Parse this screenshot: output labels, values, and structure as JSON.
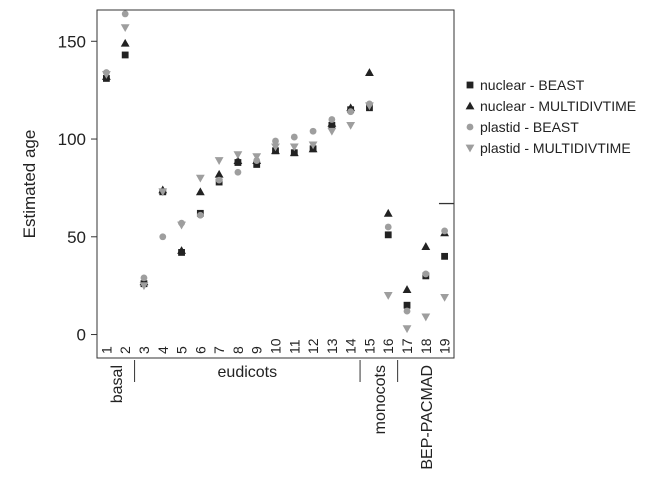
{
  "chart_data": {
    "type": "scatter",
    "ylabel": "Estimated age",
    "ylim": [
      -12,
      166
    ],
    "yticks": [
      0,
      50,
      100,
      150
    ],
    "xlim": [
      0.5,
      19.5
    ],
    "x_tick_labels": [
      "1",
      "2",
      "3",
      "4",
      "5",
      "6",
      "7",
      "8",
      "9",
      "10",
      "11",
      "12",
      "13",
      "14",
      "15",
      "16",
      "17",
      "18",
      "19"
    ],
    "groups": [
      {
        "label": "basal",
        "range": [
          1,
          2
        ]
      },
      {
        "label": "eudicots",
        "range": [
          3,
          14
        ]
      },
      {
        "label": "monocots",
        "range": [
          15,
          16
        ]
      },
      {
        "label": "BEP-PACMAD",
        "range": [
          17,
          19
        ]
      }
    ],
    "legend_position": "right",
    "series": [
      {
        "name": "nuclear - BEAST",
        "marker": "square",
        "color": "#222222",
        "values": [
          131,
          143,
          26,
          73,
          42,
          62,
          78,
          88,
          87,
          94,
          93,
          95,
          107,
          115,
          116,
          51,
          15,
          30,
          40
        ]
      },
      {
        "name": "nuclear - MULTIDIVTIME",
        "marker": "triangle-up",
        "color": "#222222",
        "values": [
          132,
          149,
          27,
          74,
          43,
          73,
          82,
          89,
          89,
          94,
          93,
          95,
          108,
          116,
          134,
          62,
          23,
          45,
          52
        ]
      },
      {
        "name": "plastid - BEAST",
        "marker": "circle",
        "color": "#9e9e9e",
        "values": [
          134,
          164,
          29,
          50,
          57,
          61,
          79,
          83,
          89,
          99,
          101,
          104,
          110,
          114,
          118,
          55,
          12,
          31,
          53
        ]
      },
      {
        "name": "plastid - MULTIDIVTIME",
        "marker": "triangle-down",
        "color": "#9e9e9e",
        "values": [
          133,
          157,
          25,
          73,
          56,
          80,
          89,
          92,
          91,
          96,
          96,
          97,
          104,
          107,
          117,
          20,
          3,
          9,
          19
        ]
      }
    ],
    "annotations": [
      {
        "type": "horizontal-line",
        "x_range": [
          18.7,
          19.5
        ],
        "y": 67
      }
    ]
  }
}
